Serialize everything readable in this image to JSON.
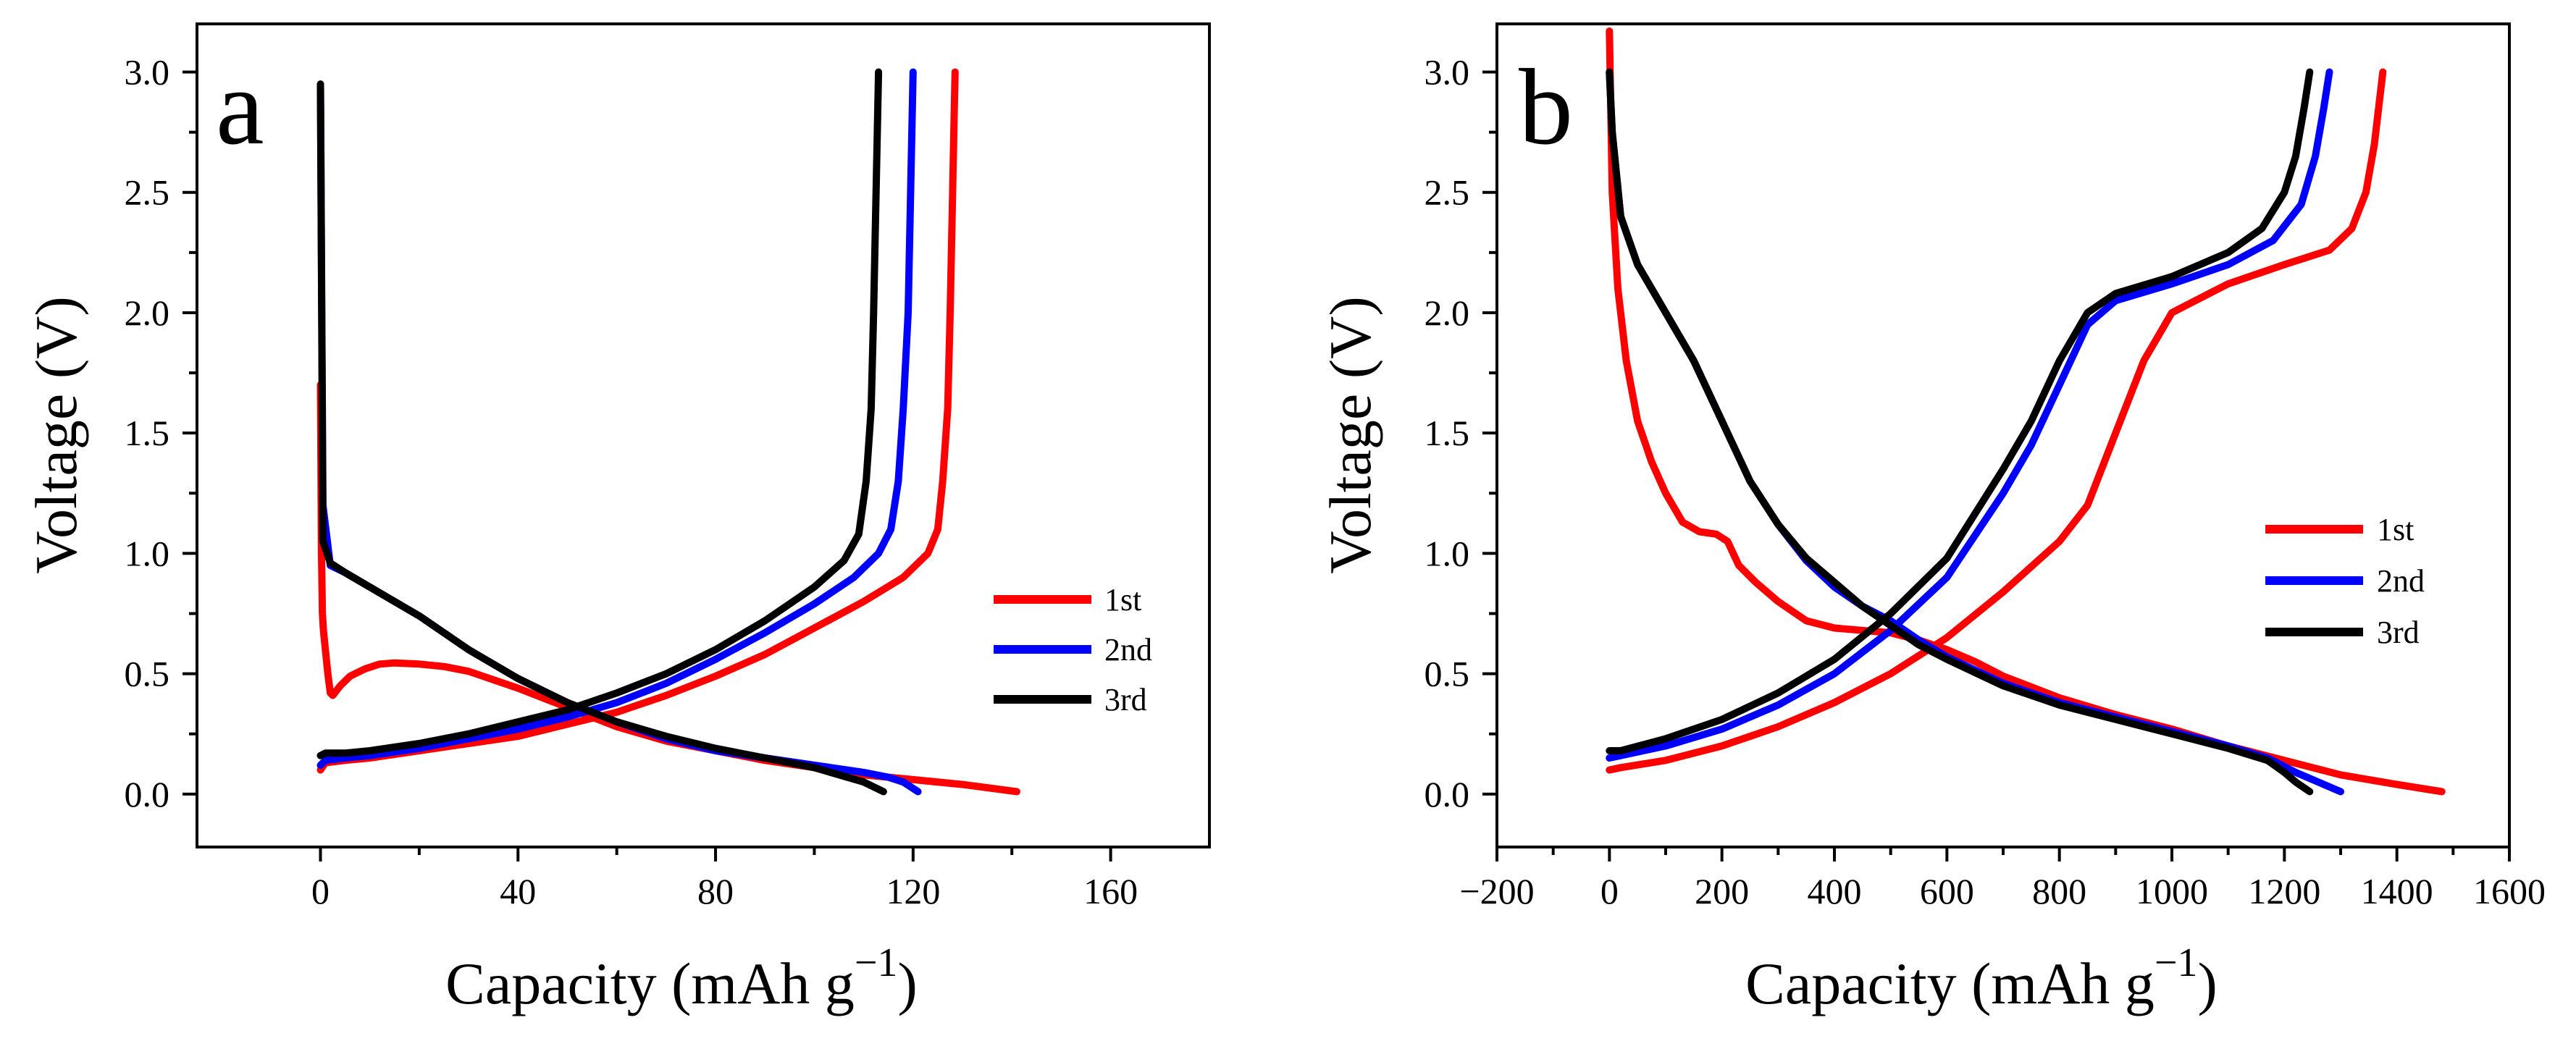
{
  "chart_data": [
    {
      "type": "line",
      "panel_label": "a",
      "xlabel": "Capacity (mAh g",
      "xlabel_superscript": "−1",
      "xlabel_close": ")",
      "ylabel": "Voltage (V)",
      "xlim": [
        -25,
        180
      ],
      "ylim": [
        -0.22,
        3.2
      ],
      "xticks": [
        0,
        40,
        80,
        120,
        160
      ],
      "xtick_labels": [
        "0",
        "40",
        "80",
        "120",
        "160"
      ],
      "yticks": [
        0.0,
        0.5,
        1.0,
        1.5,
        2.0,
        2.5,
        3.0
      ],
      "ytick_labels": [
        "0.0",
        "0.5",
        "1.0",
        "1.5",
        "2.0",
        "2.5",
        "3.0"
      ],
      "legend_position": "middle-right",
      "series": [
        {
          "name": "1st",
          "color": "#ff0000",
          "discharge": {
            "x": [
              0,
              0.2,
              0.4,
              0.6,
              1,
              1.5,
              2,
              2.5,
              4,
              6,
              9,
              12,
              15,
              20,
              25,
              30,
              40,
              50,
              60,
              70,
              80,
              90,
              100,
              110,
              120,
              130,
              141
            ],
            "y": [
              1.7,
              1.0,
              0.75,
              0.68,
              0.6,
              0.5,
              0.42,
              0.41,
              0.45,
              0.49,
              0.52,
              0.54,
              0.545,
              0.54,
              0.53,
              0.51,
              0.44,
              0.36,
              0.28,
              0.22,
              0.18,
              0.14,
              0.11,
              0.08,
              0.06,
              0.04,
              0.01
            ]
          },
          "charge": {
            "x": [
              0,
              1,
              5,
              10,
              20,
              30,
              40,
              50,
              60,
              70,
              80,
              90,
              100,
              110,
              118,
              123,
              125,
              126,
              127,
              127.5,
              128,
              128.3,
              128.5
            ],
            "y": [
              0.1,
              0.13,
              0.14,
              0.15,
              0.18,
              0.21,
              0.24,
              0.29,
              0.34,
              0.41,
              0.49,
              0.58,
              0.69,
              0.8,
              0.9,
              1.0,
              1.1,
              1.3,
              1.6,
              2.0,
              2.5,
              2.8,
              3.0
            ]
          }
        },
        {
          "name": "2nd",
          "color": "#0000ff",
          "discharge": {
            "x": [
              0,
              0.5,
              2,
              5,
              10,
              20,
              30,
              40,
              50,
              60,
              70,
              80,
              90,
              100,
              110,
              115,
              118,
              121
            ],
            "y": [
              2.95,
              1.2,
              0.95,
              0.92,
              0.86,
              0.74,
              0.6,
              0.48,
              0.38,
              0.3,
              0.23,
              0.18,
              0.15,
              0.12,
              0.09,
              0.07,
              0.05,
              0.01
            ]
          },
          "charge": {
            "x": [
              0,
              1,
              5,
              10,
              20,
              30,
              40,
              50,
              60,
              70,
              80,
              90,
              100,
              108,
              113,
              115.5,
              117,
              118,
              119,
              119.5,
              120
            ],
            "y": [
              0.12,
              0.14,
              0.15,
              0.16,
              0.19,
              0.23,
              0.27,
              0.32,
              0.38,
              0.46,
              0.56,
              0.67,
              0.79,
              0.9,
              1.0,
              1.1,
              1.3,
              1.6,
              2.0,
              2.5,
              3.0
            ]
          }
        },
        {
          "name": "3rd",
          "color": "#000000",
          "discharge": {
            "x": [
              0,
              0.5,
              2,
              5,
              10,
              20,
              30,
              40,
              50,
              60,
              70,
              80,
              90,
              100,
              105,
              110,
              114
            ],
            "y": [
              2.95,
              1.05,
              0.96,
              0.92,
              0.86,
              0.74,
              0.6,
              0.48,
              0.38,
              0.3,
              0.24,
              0.19,
              0.15,
              0.11,
              0.08,
              0.05,
              0.01
            ]
          },
          "charge": {
            "x": [
              0,
              1,
              5,
              10,
              20,
              30,
              40,
              50,
              60,
              70,
              80,
              90,
              100,
              106,
              109,
              110.5,
              111.5,
              112,
              112.5,
              113
            ],
            "y": [
              0.16,
              0.17,
              0.17,
              0.18,
              0.21,
              0.25,
              0.3,
              0.35,
              0.42,
              0.5,
              0.6,
              0.72,
              0.86,
              0.97,
              1.08,
              1.3,
              1.6,
              2.0,
              2.5,
              3.0
            ]
          }
        }
      ]
    },
    {
      "type": "line",
      "panel_label": "b",
      "xlabel": "Capacity (mAh g",
      "xlabel_superscript": "−1",
      "xlabel_close": ")",
      "ylabel": "Voltage (V)",
      "xlim": [
        -200,
        1600
      ],
      "ylim": [
        -0.22,
        3.2
      ],
      "xticks": [
        -200,
        0,
        200,
        400,
        600,
        800,
        1000,
        1200,
        1400,
        1600
      ],
      "xtick_labels": [
        "−200",
        "0",
        "200",
        "400",
        "600",
        "800",
        "1000",
        "1200",
        "1400",
        "1600"
      ],
      "yticks": [
        0.0,
        0.5,
        1.0,
        1.5,
        2.0,
        2.5,
        3.0
      ],
      "ytick_labels": [
        "0.0",
        "0.5",
        "1.0",
        "1.5",
        "2.0",
        "2.5",
        "3.0"
      ],
      "legend_position": "middle-right",
      "series": [
        {
          "name": "1st",
          "color": "#ff0000",
          "discharge": {
            "x": [
              0,
              5,
              15,
              30,
              50,
              75,
              100,
              130,
              160,
              190,
              210,
              230,
              260,
              300,
              350,
              400,
              450,
              500,
              550,
              600,
              650,
              700,
              800,
              900,
              1000,
              1100,
              1200,
              1300,
              1400,
              1480
            ],
            "y": [
              3.17,
              2.5,
              2.1,
              1.8,
              1.55,
              1.38,
              1.25,
              1.13,
              1.09,
              1.08,
              1.05,
              0.95,
              0.88,
              0.8,
              0.72,
              0.69,
              0.68,
              0.67,
              0.64,
              0.6,
              0.55,
              0.49,
              0.4,
              0.33,
              0.27,
              0.2,
              0.14,
              0.08,
              0.04,
              0.01
            ]
          },
          "charge": {
            "x": [
              0,
              20,
              100,
              200,
              300,
              400,
              500,
              600,
              700,
              800,
              850,
              900,
              950,
              1000,
              1100,
              1200,
              1280,
              1320,
              1345,
              1360,
              1370,
              1375
            ],
            "y": [
              0.1,
              0.11,
              0.14,
              0.2,
              0.28,
              0.38,
              0.5,
              0.65,
              0.84,
              1.05,
              1.2,
              1.5,
              1.8,
              2.0,
              2.12,
              2.2,
              2.26,
              2.35,
              2.5,
              2.7,
              2.9,
              3.0
            ]
          }
        },
        {
          "name": "2nd",
          "color": "#0000ff",
          "discharge": {
            "x": [
              0,
              5,
              20,
              50,
              100,
              150,
              200,
              250,
              300,
              350,
              400,
              450,
              500,
              550,
              600,
              700,
              800,
              900,
              1000,
              1100,
              1170,
              1220,
              1260,
              1300
            ],
            "y": [
              3.0,
              2.75,
              2.4,
              2.2,
              2.0,
              1.8,
              1.55,
              1.3,
              1.12,
              0.97,
              0.86,
              0.78,
              0.72,
              0.64,
              0.57,
              0.46,
              0.38,
              0.32,
              0.26,
              0.2,
              0.15,
              0.09,
              0.05,
              0.01
            ]
          },
          "charge": {
            "x": [
              0,
              20,
              100,
              200,
              300,
              400,
              500,
              600,
              700,
              750,
              800,
              850,
              900,
              1000,
              1100,
              1180,
              1230,
              1255,
              1270,
              1280
            ],
            "y": [
              0.15,
              0.16,
              0.2,
              0.27,
              0.37,
              0.5,
              0.68,
              0.9,
              1.25,
              1.45,
              1.7,
              1.95,
              2.05,
              2.12,
              2.2,
              2.3,
              2.45,
              2.65,
              2.85,
              3.0
            ]
          }
        },
        {
          "name": "3rd",
          "color": "#000000",
          "discharge": {
            "x": [
              0,
              5,
              20,
              50,
              100,
              150,
              200,
              250,
              300,
              350,
              400,
              450,
              500,
              550,
              600,
              700,
              800,
              900,
              1000,
              1100,
              1170,
              1200,
              1220,
              1245
            ],
            "y": [
              3.0,
              2.75,
              2.4,
              2.2,
              2.0,
              1.8,
              1.55,
              1.3,
              1.12,
              0.98,
              0.88,
              0.78,
              0.7,
              0.62,
              0.56,
              0.45,
              0.37,
              0.31,
              0.25,
              0.19,
              0.14,
              0.09,
              0.05,
              0.01
            ]
          },
          "charge": {
            "x": [
              0,
              20,
              100,
              200,
              300,
              400,
              500,
              600,
              700,
              750,
              800,
              850,
              900,
              1000,
              1100,
              1160,
              1200,
              1220,
              1235,
              1245
            ],
            "y": [
              0.18,
              0.18,
              0.23,
              0.31,
              0.42,
              0.56,
              0.75,
              0.98,
              1.35,
              1.55,
              1.8,
              2.0,
              2.08,
              2.15,
              2.25,
              2.35,
              2.5,
              2.65,
              2.85,
              3.0
            ]
          }
        }
      ]
    }
  ]
}
